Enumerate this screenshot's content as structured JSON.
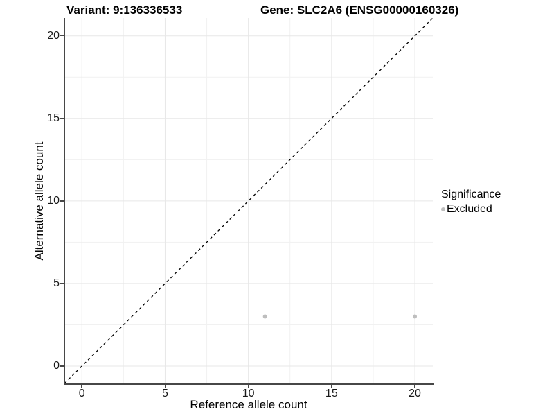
{
  "header": {
    "variant_title": "Variant: 9:136336533",
    "gene_title": "Gene: SLC2A6 (ENSG00000160326)"
  },
  "legend": {
    "title": "Significance",
    "position": "right",
    "items": [
      {
        "label": "Excluded",
        "color": "#bebebe"
      }
    ]
  },
  "colors": {
    "background": "#ffffff",
    "grid_major": "#e7e7e7",
    "grid_minor": "#f1f1f1",
    "axis_line": "#474747",
    "identity_line": "#000000",
    "point_excluded": "#bebebe",
    "text": "#000000",
    "tick_text": "#1a1a1a"
  },
  "chart_data": {
    "type": "scatter",
    "title": "Variant: 9:136336533    Gene: SLC2A6 (ENSG00000160326)",
    "xlabel": "Reference allele count",
    "ylabel": "Alternative allele count",
    "xlim": [
      -1.05,
      21.08
    ],
    "ylim": [
      -1.05,
      21.08
    ],
    "x_ticks": [
      0,
      5,
      10,
      15,
      20
    ],
    "y_ticks": [
      0,
      5,
      10,
      15,
      20
    ],
    "x_minor_ticks": [
      2.5,
      7.5,
      12.5,
      17.5
    ],
    "y_minor_ticks": [
      2.5,
      7.5,
      12.5,
      17.5
    ],
    "grid": true,
    "legend_position": "right",
    "series": [
      {
        "name": "Excluded",
        "color": "#bebebe",
        "point_radius": 3,
        "points": [
          {
            "x": 11,
            "y": 3
          },
          {
            "x": 20,
            "y": 3
          }
        ]
      }
    ],
    "reference_line": {
      "type": "identity",
      "slope": 1,
      "intercept": 0,
      "style": "dashed",
      "color": "#000000"
    }
  }
}
